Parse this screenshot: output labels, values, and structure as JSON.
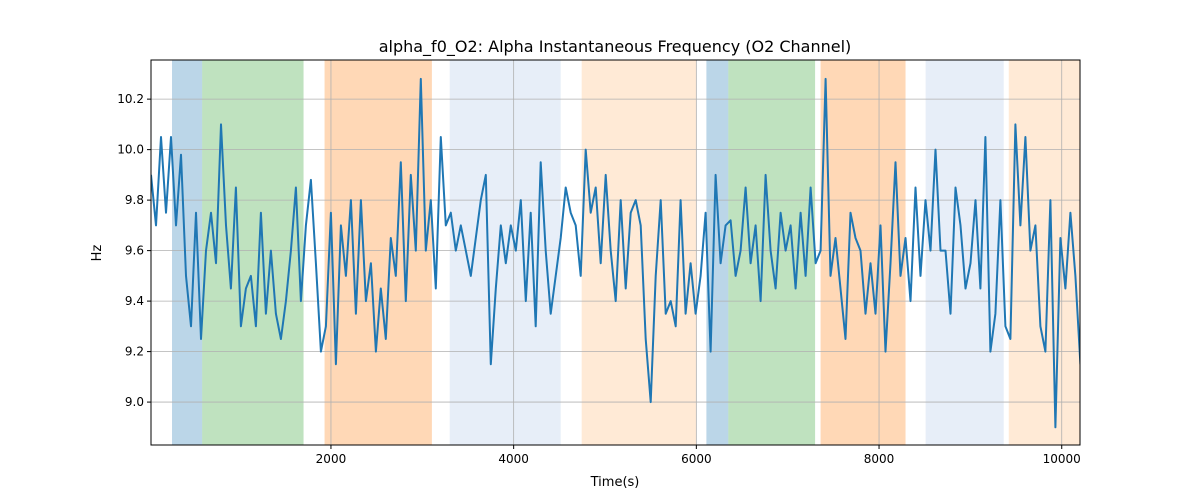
{
  "chart_data": {
    "type": "line",
    "title": "alpha_f0_O2: Alpha Instantaneous Frequency (O2 Channel)",
    "xlabel": "Time(s)",
    "ylabel": "Hz",
    "xlim": [
      30,
      10200
    ],
    "ylim": [
      8.83,
      10.355
    ],
    "xticks": [
      2000,
      4000,
      6000,
      8000,
      10000
    ],
    "yticks": [
      9.0,
      9.2,
      9.4,
      9.6,
      9.8,
      10.0,
      10.2
    ],
    "ytick_labels": [
      "9.0",
      "9.2",
      "9.4",
      "9.6",
      "9.8",
      "10.0",
      "10.2"
    ],
    "grid": true,
    "line_color": "#1f77b4",
    "x_start": 30,
    "x_step": 54.7,
    "values": [
      9.9,
      9.7,
      10.05,
      9.75,
      10.05,
      9.7,
      9.98,
      9.5,
      9.3,
      9.75,
      9.25,
      9.6,
      9.75,
      9.55,
      10.1,
      9.7,
      9.45,
      9.85,
      9.3,
      9.45,
      9.5,
      9.3,
      9.75,
      9.35,
      9.6,
      9.35,
      9.25,
      9.4,
      9.6,
      9.85,
      9.4,
      9.7,
      9.88,
      9.55,
      9.2,
      9.3,
      9.75,
      9.15,
      9.7,
      9.5,
      9.8,
      9.35,
      9.8,
      9.4,
      9.55,
      9.2,
      9.45,
      9.25,
      9.65,
      9.5,
      9.95,
      9.4,
      9.9,
      9.6,
      10.28,
      9.6,
      9.8,
      9.45,
      10.05,
      9.7,
      9.75,
      9.6,
      9.7,
      9.6,
      9.5,
      9.65,
      9.8,
      9.9,
      9.15,
      9.45,
      9.7,
      9.55,
      9.7,
      9.6,
      9.8,
      9.4,
      9.75,
      9.3,
      9.95,
      9.6,
      9.35,
      9.5,
      9.65,
      9.85,
      9.75,
      9.7,
      9.5,
      10.0,
      9.75,
      9.85,
      9.55,
      9.9,
      9.6,
      9.4,
      9.8,
      9.45,
      9.75,
      9.8,
      9.7,
      9.25,
      9.0,
      9.5,
      9.8,
      9.35,
      9.4,
      9.3,
      9.8,
      9.35,
      9.55,
      9.35,
      9.5,
      9.75,
      9.2,
      9.9,
      9.55,
      9.7,
      9.72,
      9.5,
      9.6,
      9.85,
      9.55,
      9.7,
      9.4,
      9.9,
      9.6,
      9.45,
      9.75,
      9.6,
      9.7,
      9.45,
      9.75,
      9.5,
      9.85,
      9.55,
      9.6,
      10.28,
      9.5,
      9.65,
      9.45,
      9.25,
      9.75,
      9.65,
      9.6,
      9.35,
      9.55,
      9.35,
      9.7,
      9.2,
      9.55,
      9.95,
      9.5,
      9.65,
      9.4,
      9.85,
      9.5,
      9.8,
      9.6,
      10.0,
      9.6,
      9.6,
      9.35,
      9.85,
      9.7,
      9.45,
      9.55,
      9.8,
      9.45,
      10.05,
      9.2,
      9.35,
      9.8,
      9.3,
      9.25,
      10.1,
      9.7,
      10.05,
      9.6,
      9.7,
      9.3,
      9.2,
      9.8,
      8.9,
      9.65,
      9.45,
      9.75,
      9.5,
      9.15,
      9.65,
      9.25
    ],
    "regions": [
      {
        "start": 260,
        "end": 590,
        "color": "#1f77b4",
        "opacity": 0.3
      },
      {
        "start": 590,
        "end": 1700,
        "color": "#2ca02c",
        "opacity": 0.3
      },
      {
        "start": 1930,
        "end": 3105,
        "color": "#ff7f0e",
        "opacity": 0.3
      },
      {
        "start": 3300,
        "end": 4515,
        "color": "#aec7e8",
        "opacity": 0.3
      },
      {
        "start": 4745,
        "end": 6000,
        "color": "#ffbb78",
        "opacity": 0.3
      },
      {
        "start": 6110,
        "end": 6350,
        "color": "#1f77b4",
        "opacity": 0.3
      },
      {
        "start": 6350,
        "end": 7300,
        "color": "#2ca02c",
        "opacity": 0.3
      },
      {
        "start": 7360,
        "end": 8290,
        "color": "#ff7f0e",
        "opacity": 0.3
      },
      {
        "start": 8510,
        "end": 9365,
        "color": "#aec7e8",
        "opacity": 0.3
      },
      {
        "start": 9420,
        "end": 10200,
        "color": "#ffbb78",
        "opacity": 0.3
      }
    ]
  }
}
